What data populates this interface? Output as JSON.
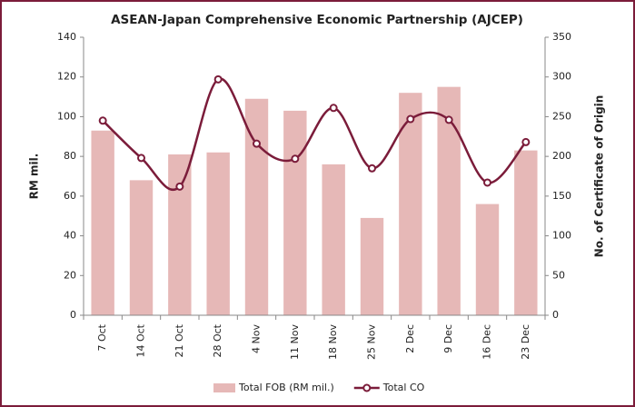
{
  "chart_data": {
    "type": "bar",
    "title": "ASEAN-Japan Comprehensive Economic Partnership (AJCEP)",
    "y_label": "RM mil.",
    "y2_label": "No. of Certificate of Origin",
    "categories": [
      "7 Oct",
      "14 Oct",
      "21 Oct",
      "28 Oct",
      "4 Nov",
      "11 Nov",
      "18 Nov",
      "25 Nov",
      "2 Dec",
      "9 Dec",
      "16 Dec",
      "23 Dec"
    ],
    "series": [
      {
        "name": "Total FOB (RM mil.)",
        "type": "bar",
        "color": "#e6b8b7",
        "values": [
          93,
          68,
          81,
          82,
          109,
          103,
          76,
          49,
          112,
          115,
          56,
          83
        ]
      },
      {
        "name": "Total CO",
        "type": "line",
        "axis": "y2",
        "color": "#7b1c3a",
        "values": [
          245,
          198,
          162,
          297,
          216,
          197,
          261,
          185,
          247,
          246,
          167,
          218
        ]
      }
    ],
    "ylim": [
      0,
      140
    ],
    "yticks": [
      0,
      20,
      40,
      60,
      80,
      100,
      120,
      140
    ],
    "y2lim": [
      0,
      350
    ],
    "y2ticks": [
      0,
      50,
      100,
      150,
      200,
      250,
      300,
      350
    ],
    "legend": "bottom"
  }
}
